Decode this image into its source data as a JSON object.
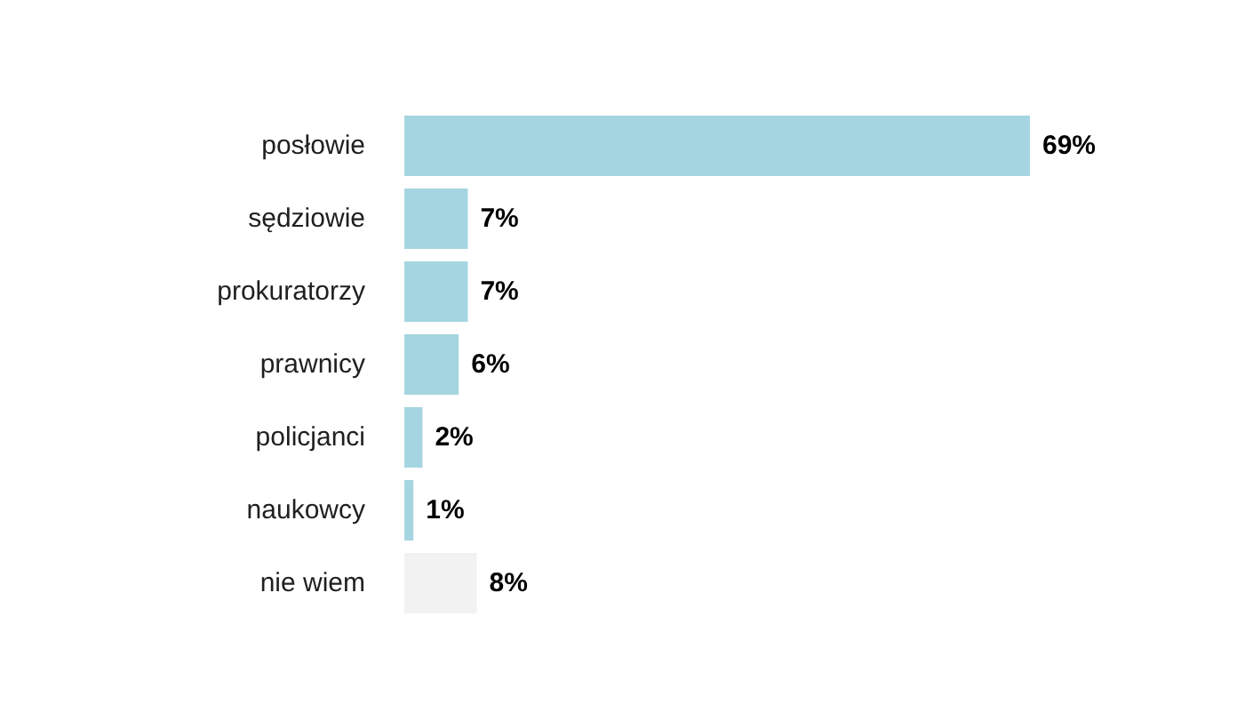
{
  "chart_data": {
    "type": "bar",
    "orientation": "horizontal",
    "categories": [
      "posłowie",
      "sędziowie",
      "prokuratorzy",
      "prawnicy",
      "policjanci",
      "naukowcy",
      "nie wiem"
    ],
    "values": [
      69,
      7,
      7,
      6,
      2,
      1,
      8
    ],
    "colors": [
      "#a5d5e1",
      "#a5d5e1",
      "#a5d5e1",
      "#a5d5e1",
      "#a5d5e1",
      "#a5d5e1",
      "#f2f2f2"
    ],
    "value_labels": [
      "69%",
      "7%",
      "7%",
      "6%",
      "2%",
      "1%",
      "8%"
    ],
    "grid": false
  }
}
